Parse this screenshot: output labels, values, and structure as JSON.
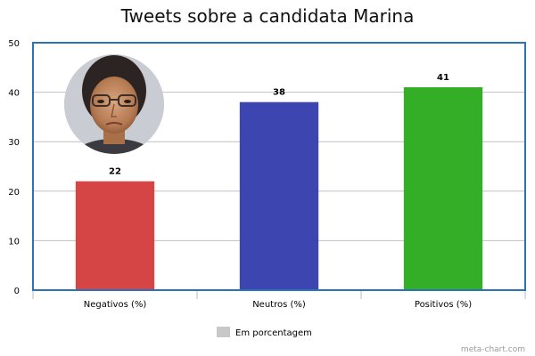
{
  "chart_data": {
    "type": "bar",
    "title": "Tweets sobre a candidata Marina",
    "categories": [
      "Negativos (%)",
      "Neutros (%)",
      "Positivos (%)"
    ],
    "values": [
      22,
      38,
      41
    ],
    "colors": [
      "#d64545",
      "#3d45b0",
      "#34ad27"
    ],
    "ylim": [
      0,
      50
    ],
    "yticks": [
      0,
      10,
      20,
      30,
      40,
      50
    ],
    "grid": true,
    "legend": {
      "label": "Em porcentagem",
      "swatch_color": "#c8c8c8",
      "placement": "bottom-center"
    },
    "frame_color": "#2a73b8",
    "grid_color": "#c0c0c0"
  },
  "credit": "meta-chart.com",
  "photo": {
    "icon": "candidate-portrait-photo"
  }
}
